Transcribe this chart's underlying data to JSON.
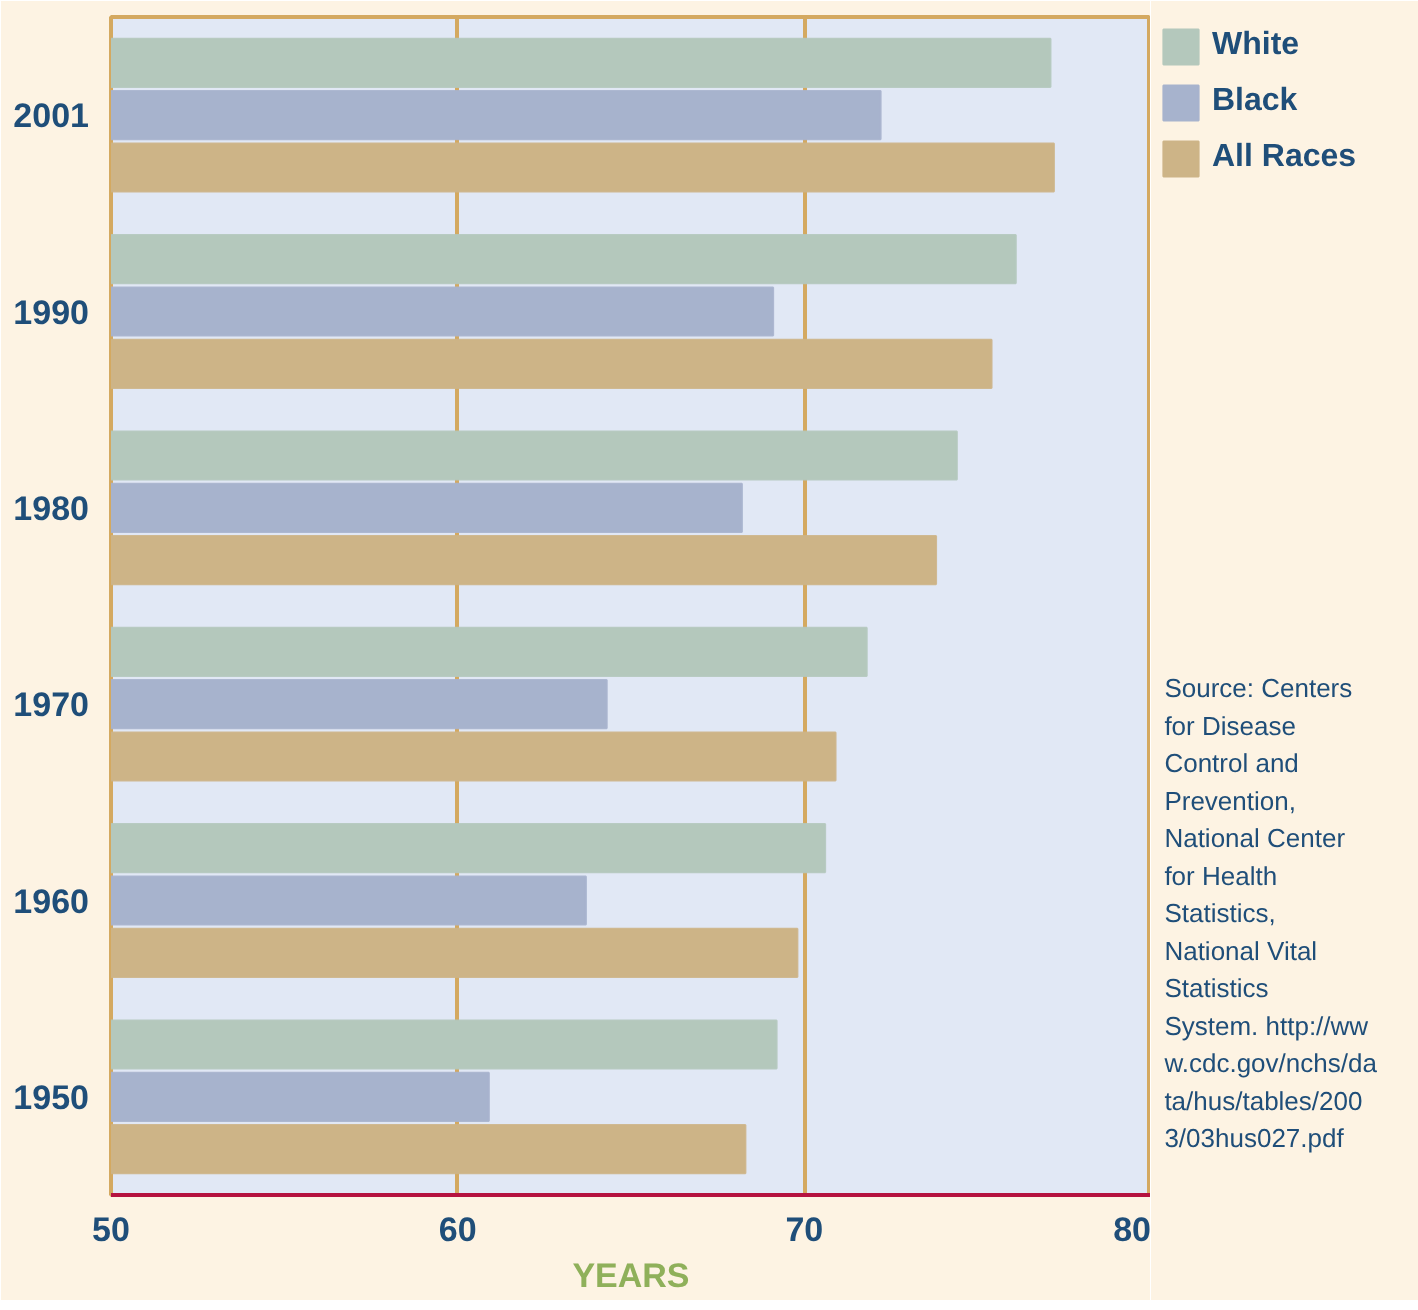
{
  "chart_data": {
    "type": "bar",
    "orientation": "horizontal",
    "xlabel": "YEARS",
    "categories": [
      "2001",
      "1990",
      "1980",
      "1970",
      "1960",
      "1950"
    ],
    "series": [
      {
        "name": "White",
        "color": "#b4c8bc",
        "values": [
          77.1,
          76.1,
          74.4,
          71.8,
          70.6,
          69.2
        ]
      },
      {
        "name": "Black",
        "color": "#a7b3cd",
        "values": [
          72.2,
          69.1,
          68.2,
          64.3,
          63.7,
          60.9
        ]
      },
      {
        "name": "All Races",
        "color": "#cdb487",
        "values": [
          77.2,
          75.4,
          73.8,
          70.9,
          69.8,
          68.3
        ]
      }
    ],
    "xlim": [
      50,
      80
    ],
    "xticks": [
      50,
      60,
      70,
      80
    ],
    "grid": "x",
    "legend": "top right",
    "annotations": [
      "Source: Centers for Disease Control and Prevention, National Center for Health Statistics, National Vital Statistics System. http://www.cdc.gov/nchs/data/hus/tables/2003/03hus027.pdf"
    ]
  }
}
